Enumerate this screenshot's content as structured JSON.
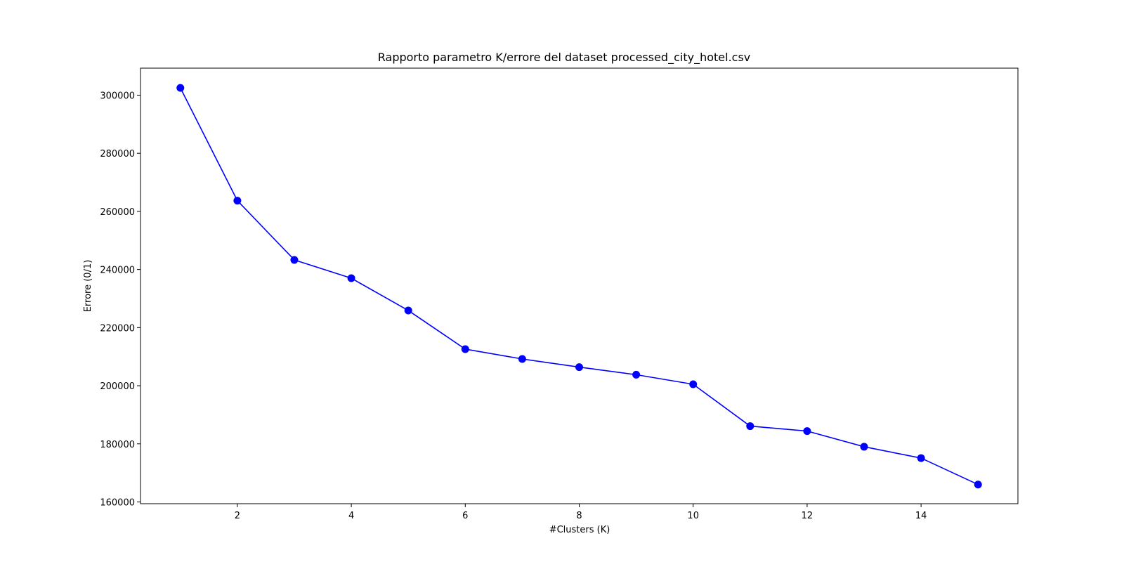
{
  "chart_data": {
    "type": "line",
    "title": "Rapporto parametro K/errore del dataset processed_city_hotel.csv",
    "xlabel": "#Clusters (K)",
    "ylabel": "Errore (0/1)",
    "x": [
      1,
      2,
      3,
      4,
      5,
      6,
      7,
      8,
      9,
      10,
      11,
      12,
      13,
      14,
      15
    ],
    "series": [
      {
        "values": [
          302500,
          263700,
          243300,
          237000,
          225900,
          212600,
          209200,
          206400,
          203800,
          200500,
          186100,
          184400,
          179000,
          175100,
          166000
        ],
        "color": "#0000ff",
        "marker": "circle"
      }
    ],
    "xlim": [
      0.3,
      15.7
    ],
    "ylim": [
      159400,
      309300
    ],
    "xticks": [
      2,
      4,
      6,
      8,
      10,
      12,
      14
    ],
    "xtick_labels": [
      "2",
      "4",
      "6",
      "8",
      "10",
      "12",
      "14"
    ],
    "yticks": [
      160000,
      180000,
      200000,
      220000,
      240000,
      260000,
      280000,
      300000
    ],
    "ytick_labels": [
      "160000",
      "180000",
      "200000",
      "220000",
      "240000",
      "260000",
      "280000",
      "300000"
    ],
    "grid": false,
    "legend": false
  }
}
